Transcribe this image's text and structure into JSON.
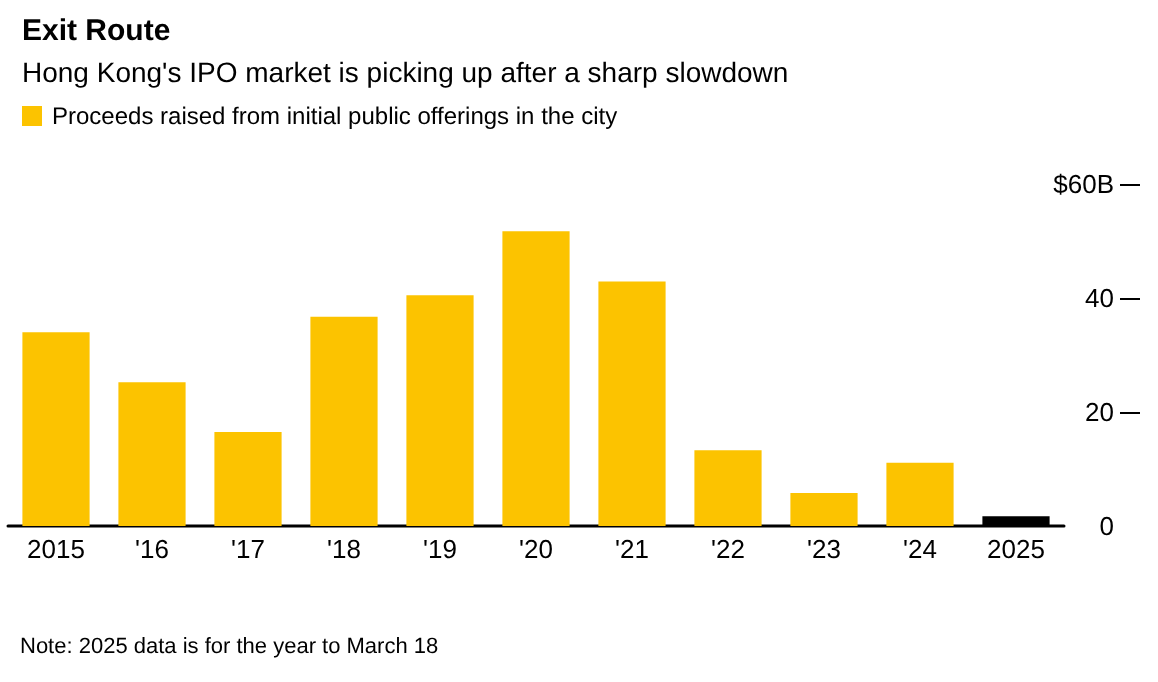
{
  "chart_data": {
    "type": "bar",
    "title": "Exit Route",
    "subtitle": "Hong Kong's IPO market is picking up after a sharp slowdown",
    "categories": [
      "2015",
      "'16",
      "'17",
      "'18",
      "'19",
      "'20",
      "'21",
      "'22",
      "'23",
      "'24",
      "2025"
    ],
    "series": [
      {
        "name": "Proceeds raised from initial public offerings in the city",
        "color": "#fcc300",
        "colors": [
          "#fcc300",
          "#fcc300",
          "#fcc300",
          "#fcc300",
          "#fcc300",
          "#fcc300",
          "#fcc300",
          "#fcc300",
          "#fcc300",
          "#fcc300",
          "#000000"
        ],
        "values": [
          34.0,
          25.2,
          16.5,
          36.7,
          40.5,
          51.7,
          42.9,
          13.3,
          5.8,
          11.1,
          1.7
        ]
      }
    ],
    "ylim": [
      0,
      60
    ],
    "yticks": [
      0,
      20,
      40,
      {
        "value": 60,
        "label": "$60B"
      }
    ],
    "annotations": [
      "Note: 2025 data is for the year to March 18"
    ],
    "legend": "top left",
    "grid": false
  }
}
